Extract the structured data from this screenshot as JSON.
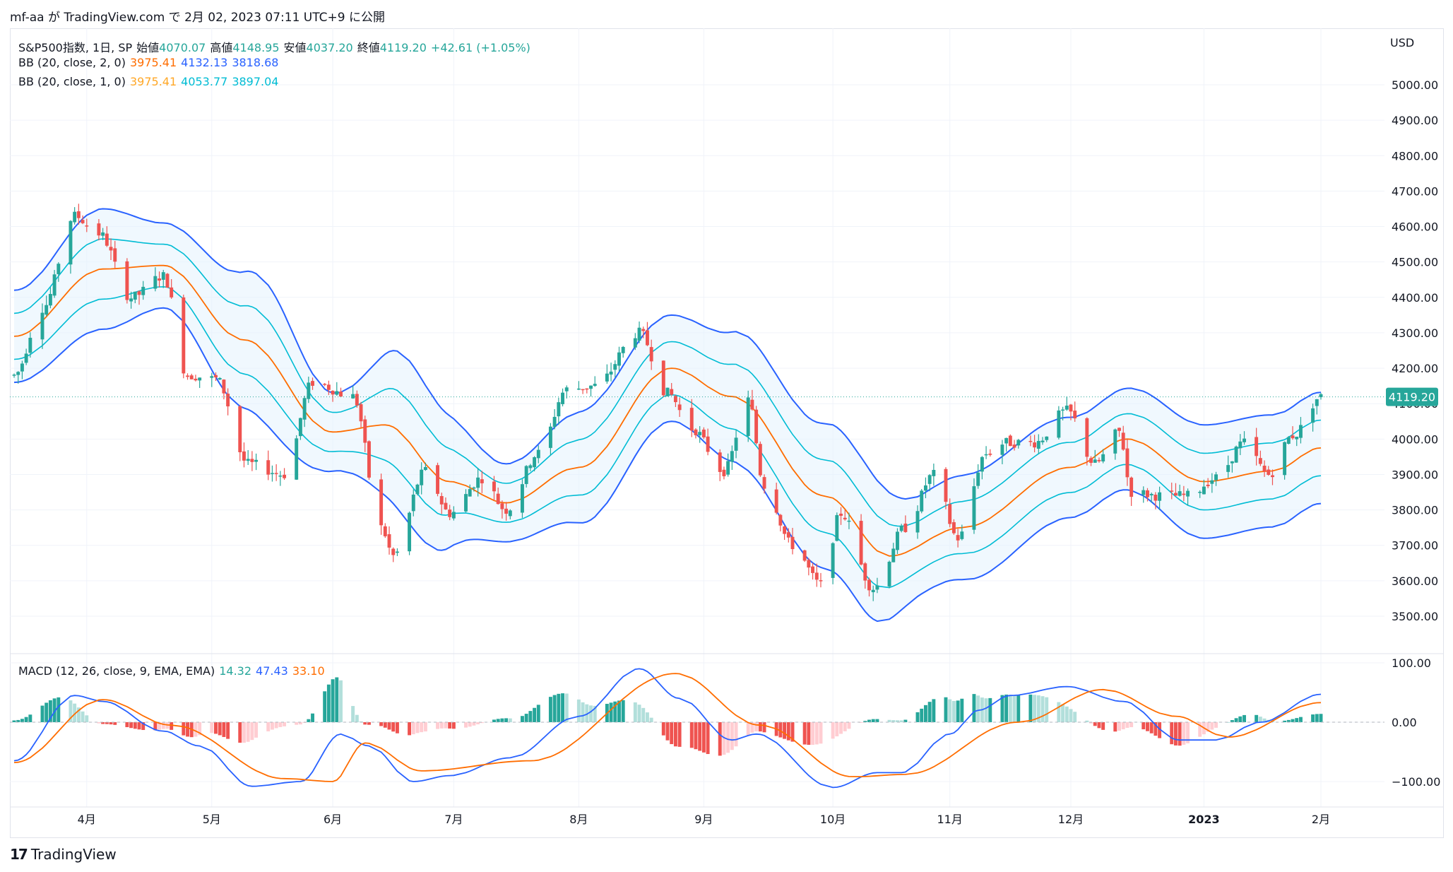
{
  "caption": "mf-aa が TradingView.com で 2月 02, 2023 07:11 UTC+9 に公開",
  "legend": {
    "symbol": "S&P500指数, 1日, SP",
    "open_label": "始値",
    "open": "4070.07",
    "high_label": "高値",
    "high": "4148.95",
    "low_label": "安値",
    "low": "4037.20",
    "close_label": "終値",
    "close": "4119.20",
    "change": "+42.61 (+1.05%)",
    "bb1_label": "BB (20, close, 2, 0)",
    "bb1_mid": "3975.41",
    "bb1_up": "4132.13",
    "bb1_lo": "3818.68",
    "bb2_label": "BB (20, close, 1, 0)",
    "bb2_mid": "3975.41",
    "bb2_up": "4053.77",
    "bb2_lo": "3897.04",
    "macd_label": "MACD (12, 26, close, 9, EMA, EMA)",
    "macd_hist": "14.32",
    "macd_line": "47.43",
    "macd_signal": "33.10"
  },
  "footer": {
    "logo_mark": "17",
    "logo_text": "TradingView"
  },
  "colors": {
    "up": "#26a69a",
    "down": "#ef5350",
    "up_light": "#b2dfdb",
    "down_light": "#ffcdd2",
    "bb2": "#2962ff",
    "bb1": "#00bcd4",
    "basis": "#ff6d00",
    "macd": "#2962ff",
    "signal": "#ff6d00",
    "fill": "#e3f2fd",
    "grid": "#f0f3fa",
    "axis_text": "#131722"
  },
  "chart_data": [
    {
      "type": "candlestick",
      "title": "S&P500指数, 1日, SP",
      "currency": "USD",
      "last_price": "4119.20",
      "ylim": [
        3450,
        5080
      ],
      "yticks": [
        "5000.00",
        "4900.00",
        "4800.00",
        "4700.00",
        "4600.00",
        "4500.00",
        "4400.00",
        "4300.00",
        "4200.00",
        "4100.00",
        "4000.00",
        "3900.00",
        "3800.00",
        "3700.00",
        "3600.00",
        "3500.00"
      ],
      "xticks": [
        "4月",
        "5月",
        "6月",
        "7月",
        "8月",
        "9月",
        "10月",
        "11月",
        "12月",
        "2023",
        "2月"
      ],
      "x_start": "2022-03-14",
      "x_end": "2023-02-01",
      "grid": true,
      "anchors": [
        [
          "2022-03-14",
          4180
        ],
        [
          "2022-03-21",
          4370
        ],
        [
          "2022-03-29",
          4630
        ],
        [
          "2022-04-04",
          4580
        ],
        [
          "2022-04-12",
          4400
        ],
        [
          "2022-04-20",
          4460
        ],
        [
          "2022-04-26",
          4180
        ],
        [
          "2022-05-03",
          4170
        ],
        [
          "2022-05-11",
          3930
        ],
        [
          "2022-05-20",
          3900
        ],
        [
          "2022-05-27",
          4160
        ],
        [
          "2022-06-06",
          4120
        ],
        [
          "2022-06-13",
          3750
        ],
        [
          "2022-06-16",
          3670
        ],
        [
          "2022-06-24",
          3910
        ],
        [
          "2022-06-30",
          3790
        ],
        [
          "2022-07-08",
          3890
        ],
        [
          "2022-07-14",
          3800
        ],
        [
          "2022-07-22",
          3960
        ],
        [
          "2022-07-29",
          4140
        ],
        [
          "2022-08-05",
          4150
        ],
        [
          "2022-08-16",
          4300
        ],
        [
          "2022-08-23",
          4130
        ],
        [
          "2022-08-29",
          4030
        ],
        [
          "2022-09-06",
          3910
        ],
        [
          "2022-09-12",
          4110
        ],
        [
          "2022-09-16",
          3870
        ],
        [
          "2022-09-23",
          3700
        ],
        [
          "2022-09-30",
          3590
        ],
        [
          "2022-10-05",
          3790
        ],
        [
          "2022-10-13",
          3580
        ],
        [
          "2022-10-21",
          3750
        ],
        [
          "2022-10-28",
          3900
        ],
        [
          "2022-11-03",
          3720
        ],
        [
          "2022-11-10",
          3960
        ],
        [
          "2022-11-15",
          3990
        ],
        [
          "2022-11-22",
          3990
        ],
        [
          "2022-11-30",
          4080
        ],
        [
          "2022-12-07",
          3930
        ],
        [
          "2022-12-13",
          4020
        ],
        [
          "2022-12-16",
          3850
        ],
        [
          "2022-12-23",
          3840
        ],
        [
          "2022-12-30",
          3840
        ],
        [
          "2023-01-06",
          3890
        ],
        [
          "2023-01-13",
          3990
        ],
        [
          "2023-01-19",
          3900
        ],
        [
          "2023-01-25",
          4010
        ],
        [
          "2023-02-01",
          4119
        ]
      ],
      "bb_basis": [
        [
          "2022-03-14",
          4290
        ],
        [
          "2022-04-05",
          4480
        ],
        [
          "2022-04-20",
          4490
        ],
        [
          "2022-05-10",
          4280
        ],
        [
          "2022-06-01",
          4020
        ],
        [
          "2022-06-14",
          4040
        ],
        [
          "2022-06-30",
          3880
        ],
        [
          "2022-07-14",
          3820
        ],
        [
          "2022-08-01",
          3920
        ],
        [
          "2022-08-24",
          4200
        ],
        [
          "2022-09-08",
          4120
        ],
        [
          "2022-10-01",
          3840
        ],
        [
          "2022-10-17",
          3670
        ],
        [
          "2022-11-04",
          3750
        ],
        [
          "2022-12-01",
          3920
        ],
        [
          "2022-12-15",
          4000
        ],
        [
          "2023-01-03",
          3880
        ],
        [
          "2023-01-20",
          3910
        ],
        [
          "2023-02-01",
          3975
        ]
      ],
      "bb_half_width": [
        [
          "2022-03-14",
          130
        ],
        [
          "2022-04-05",
          170
        ],
        [
          "2022-04-20",
          120
        ],
        [
          "2022-05-15",
          200
        ],
        [
          "2022-06-02",
          110
        ],
        [
          "2022-06-20",
          230
        ],
        [
          "2022-07-14",
          110
        ],
        [
          "2022-08-05",
          160
        ],
        [
          "2022-08-24",
          150
        ],
        [
          "2022-09-14",
          190
        ],
        [
          "2022-10-10",
          210
        ],
        [
          "2022-10-25",
          140
        ],
        [
          "2022-11-10",
          150
        ],
        [
          "2022-12-08",
          140
        ],
        [
          "2023-01-03",
          160
        ],
        [
          "2023-02-01",
          157
        ]
      ]
    },
    {
      "type": "macd",
      "title": "MACD (12, 26, close, 9, EMA, EMA)",
      "ylim": [
        -135,
        112
      ],
      "yticks": [
        "100.00",
        "0.00",
        "−100.00"
      ],
      "macd_anchors": [
        [
          "2022-03-14",
          -65
        ],
        [
          "2022-03-29",
          45
        ],
        [
          "2022-04-05",
          35
        ],
        [
          "2022-04-20",
          -15
        ],
        [
          "2022-04-29",
          -40
        ],
        [
          "2022-05-12",
          -108
        ],
        [
          "2022-05-24",
          -100
        ],
        [
          "2022-06-03",
          -20
        ],
        [
          "2022-06-10",
          -40
        ],
        [
          "2022-06-21",
          -100
        ],
        [
          "2022-06-30",
          -90
        ],
        [
          "2022-07-15",
          -60
        ],
        [
          "2022-08-01",
          10
        ],
        [
          "2022-08-16",
          90
        ],
        [
          "2022-08-26",
          40
        ],
        [
          "2022-09-08",
          -30
        ],
        [
          "2022-09-14",
          -20
        ],
        [
          "2022-10-03",
          -110
        ],
        [
          "2022-10-14",
          -85
        ],
        [
          "2022-10-20",
          -85
        ],
        [
          "2022-11-01",
          -20
        ],
        [
          "2022-11-08",
          20
        ],
        [
          "2022-11-16",
          45
        ],
        [
          "2022-11-30",
          60
        ],
        [
          "2022-12-14",
          35
        ],
        [
          "2022-12-28",
          -30
        ],
        [
          "2023-01-06",
          -30
        ],
        [
          "2023-01-17",
          0
        ],
        [
          "2023-02-01",
          47
        ]
      ],
      "signal_anchors": [
        [
          "2022-03-14",
          -68
        ],
        [
          "2022-04-05",
          38
        ],
        [
          "2022-04-22",
          -5
        ],
        [
          "2022-05-20",
          -95
        ],
        [
          "2022-06-01",
          -100
        ],
        [
          "2022-06-09",
          -35
        ],
        [
          "2022-06-23",
          -82
        ],
        [
          "2022-07-20",
          -65
        ],
        [
          "2022-08-25",
          82
        ],
        [
          "2022-09-15",
          -5
        ],
        [
          "2022-10-08",
          -92
        ],
        [
          "2022-10-21",
          -88
        ],
        [
          "2022-11-18",
          0
        ],
        [
          "2022-12-09",
          55
        ],
        [
          "2022-12-27",
          10
        ],
        [
          "2023-01-09",
          -25
        ],
        [
          "2023-02-01",
          33
        ]
      ]
    }
  ]
}
